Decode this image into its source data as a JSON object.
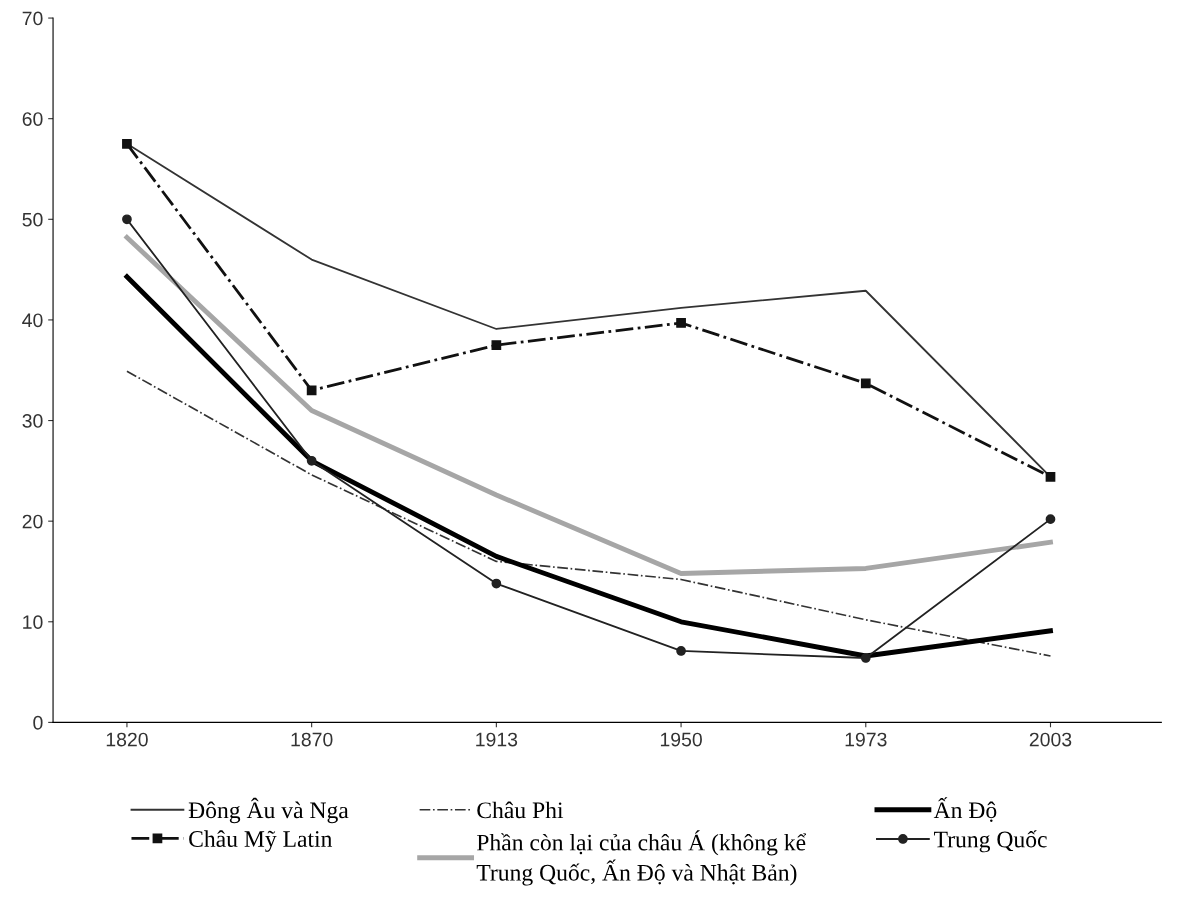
{
  "chart_data": {
    "type": "line",
    "categories": [
      "1820",
      "1870",
      "1913",
      "1950",
      "1973",
      "2003"
    ],
    "ylim": [
      0,
      70
    ],
    "yticks": [
      0,
      10,
      20,
      30,
      40,
      50,
      60,
      70
    ],
    "grid": false,
    "legend": "bottom",
    "series": [
      {
        "name": "Đông Âu và Nga",
        "color": "#333333",
        "line_style": "solid",
        "marker": "none",
        "values": [
          57.5,
          46.0,
          39.1,
          41.2,
          42.9,
          24.4
        ]
      },
      {
        "name": "Châu Mỹ Latin",
        "color": "#111111",
        "line_style": "dashdot",
        "marker": "square",
        "values": [
          57.5,
          33.0,
          37.5,
          39.7,
          33.7,
          24.4
        ]
      },
      {
        "name": "Châu Phi",
        "color": "#333333",
        "line_style": "dashdot",
        "marker": "none",
        "values": [
          34.9,
          24.6,
          16.0,
          14.2,
          10.2,
          6.6
        ]
      },
      {
        "name": "Phần còn lại của châu Á (không kể\nTrung Quốc, Ấn Độ và Nhật Bản)",
        "color": "#a6a6a6",
        "line_style": "solid",
        "marker": "none",
        "values": [
          48.2,
          31.0,
          22.6,
          14.8,
          15.3,
          17.9
        ]
      },
      {
        "name": "Ấn Độ",
        "color": "#000000",
        "line_style": "solid",
        "marker": "none",
        "values": [
          44.3,
          26.0,
          16.5,
          10.0,
          6.6,
          9.1
        ]
      },
      {
        "name": "Trung Quốc",
        "color": "#222222",
        "line_style": "solid",
        "marker": "circle",
        "values": [
          50.0,
          26.0,
          13.8,
          7.1,
          6.4,
          20.2
        ]
      }
    ]
  }
}
